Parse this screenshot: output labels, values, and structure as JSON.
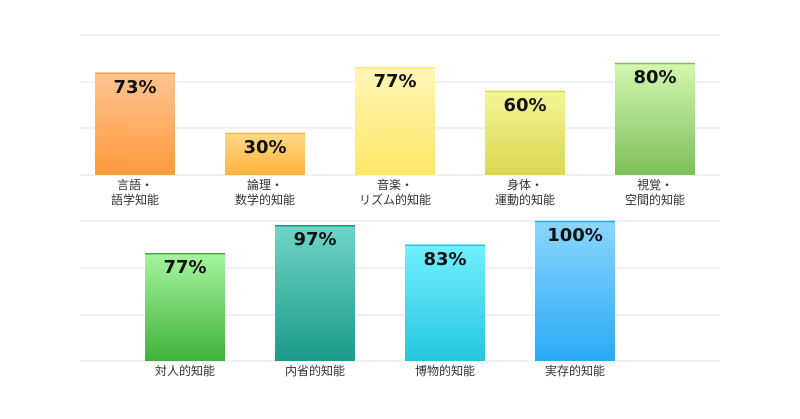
{
  "chart_data": [
    {
      "type": "bar",
      "categories": [
        [
          "言語・",
          "語学知能"
        ],
        [
          "論理・",
          "数学的知能"
        ],
        [
          "音楽・",
          "リズム的知能"
        ],
        [
          "身体・",
          "運動的知能"
        ],
        [
          "視覚・",
          "空間的知能"
        ]
      ],
      "values": [
        73,
        30,
        77,
        60,
        80
      ],
      "value_labels": [
        "73%",
        "30%",
        "77%",
        "60%",
        "80%"
      ],
      "colors": [
        [
          "#ffc490",
          "#ff9a3d"
        ],
        [
          "#ffd98a",
          "#ffb43a"
        ],
        [
          "#fff6b8",
          "#ffe766"
        ],
        [
          "#f5f59a",
          "#d8d84e"
        ],
        [
          "#d4f7b0",
          "#7cc05a"
        ]
      ],
      "ylim": [
        0,
        100
      ],
      "grid": true
    },
    {
      "type": "bar",
      "categories": [
        [
          "対人的知能"
        ],
        [
          "内省的知能"
        ],
        [
          "博物的知能"
        ],
        [
          "実存的知能"
        ]
      ],
      "values": [
        77,
        97,
        83,
        100
      ],
      "value_labels": [
        "77%",
        "97%",
        "83%",
        "100%"
      ],
      "colors": [
        [
          "#a6f5a0",
          "#3fb23a"
        ],
        [
          "#70d6c6",
          "#1a9a8a"
        ],
        [
          "#70f0ff",
          "#26c6e0"
        ],
        [
          "#8cd6ff",
          "#2aaaf5"
        ]
      ],
      "ylim": [
        0,
        100
      ],
      "grid": true
    }
  ]
}
